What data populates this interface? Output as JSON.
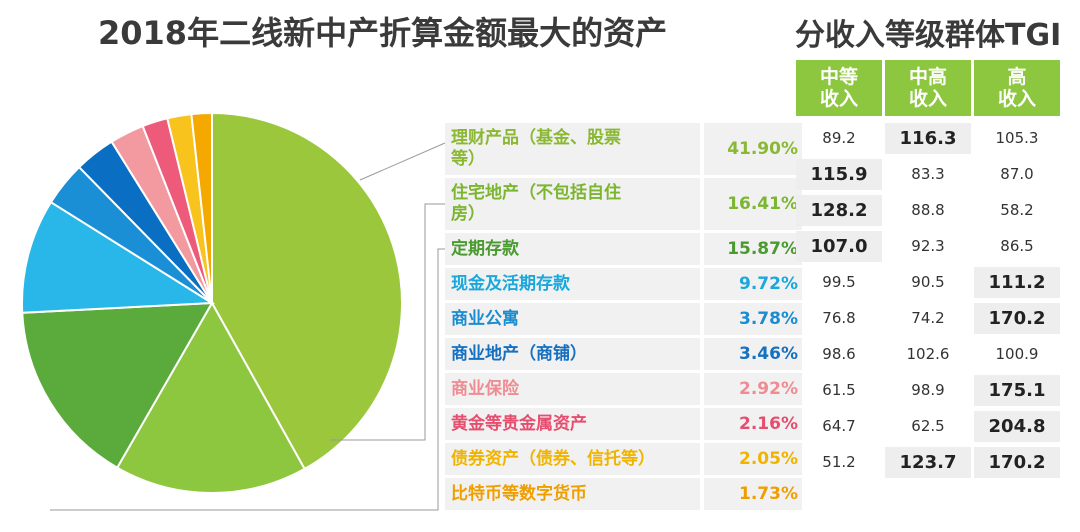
{
  "titles": {
    "left": "2018年二线新中产折算金额最大的资产",
    "right": "分收入等级群体TGI"
  },
  "chart_data": [
    {
      "type": "pie",
      "title": "2018年二线新中产折算金额最大的资产",
      "slices": [
        {
          "label_lines": [
            "理财产品（基金、股票",
            "等）"
          ],
          "pct_label": "41.90%",
          "value": 41.9,
          "color": "#9bc73c",
          "text_color": "#8ab833"
        },
        {
          "label_lines": [
            "住宅地产（不包括自住",
            "房）"
          ],
          "pct_label": "16.41%",
          "value": 16.41,
          "color": "#8dc63f",
          "text_color": "#7cb530"
        },
        {
          "label_lines": [
            "定期存款"
          ],
          "pct_label": "15.87%",
          "value": 15.87,
          "color": "#5aaa3c",
          "text_color": "#4a9a30"
        },
        {
          "label_lines": [
            "现金及活期存款"
          ],
          "pct_label": "9.72%",
          "value": 9.72,
          "color": "#29b6e8",
          "text_color": "#1aa8dc"
        },
        {
          "label_lines": [
            "商业公寓"
          ],
          "pct_label": "3.78%",
          "value": 3.78,
          "color": "#1a8fd6",
          "text_color": "#1a8ccf"
        },
        {
          "label_lines": [
            "商业地产（商铺）"
          ],
          "pct_label": "3.46%",
          "value": 3.46,
          "color": "#0a6fc2",
          "text_color": "#1670c0"
        },
        {
          "label_lines": [
            "商业保险"
          ],
          "pct_label": "2.92%",
          "value": 2.92,
          "color": "#f39aa0",
          "text_color": "#ee8c93"
        },
        {
          "label_lines": [
            "黄金等贵金属资产"
          ],
          "pct_label": "2.16%",
          "value": 2.16,
          "color": "#ee5b7a",
          "text_color": "#e64d6f"
        },
        {
          "label_lines": [
            "债券资产（债券、信托等）"
          ],
          "pct_label": "2.05%",
          "value": 2.05,
          "color": "#f7c31c",
          "text_color": "#f0b400"
        },
        {
          "label_lines": [
            "比特币等数字货币"
          ],
          "pct_label": "1.73%",
          "value": 1.73,
          "color": "#f5a800",
          "text_color": "#ef9e00"
        }
      ]
    },
    {
      "type": "table",
      "title": "分收入等级群体TGI",
      "headers": [
        {
          "line1": "中等",
          "line2": "收入"
        },
        {
          "line1": "中高",
          "line2": "收入"
        },
        {
          "line1": "高",
          "line2": "收入"
        }
      ],
      "rows": [
        [
          "89.2",
          "116.3",
          "105.3"
        ],
        [
          "115.9",
          "83.3",
          "87.0"
        ],
        [
          "128.2",
          "88.8",
          "58.2"
        ],
        [
          "107.0",
          "92.3",
          "86.5"
        ],
        [
          "99.5",
          "90.5",
          "111.2"
        ],
        [
          "76.8",
          "74.2",
          "170.2"
        ],
        [
          "98.6",
          "102.6",
          "100.9"
        ],
        [
          "61.5",
          "98.9",
          "175.1"
        ],
        [
          "64.7",
          "62.5",
          "204.8"
        ],
        [
          "51.2",
          "123.7",
          "170.2"
        ]
      ],
      "highlight": [
        [
          false,
          true,
          false
        ],
        [
          true,
          false,
          false
        ],
        [
          true,
          false,
          false
        ],
        [
          true,
          false,
          false
        ],
        [
          false,
          false,
          true
        ],
        [
          false,
          false,
          true
        ],
        [
          false,
          false,
          false
        ],
        [
          false,
          false,
          true
        ],
        [
          false,
          false,
          true
        ],
        [
          false,
          true,
          true
        ]
      ]
    }
  ]
}
